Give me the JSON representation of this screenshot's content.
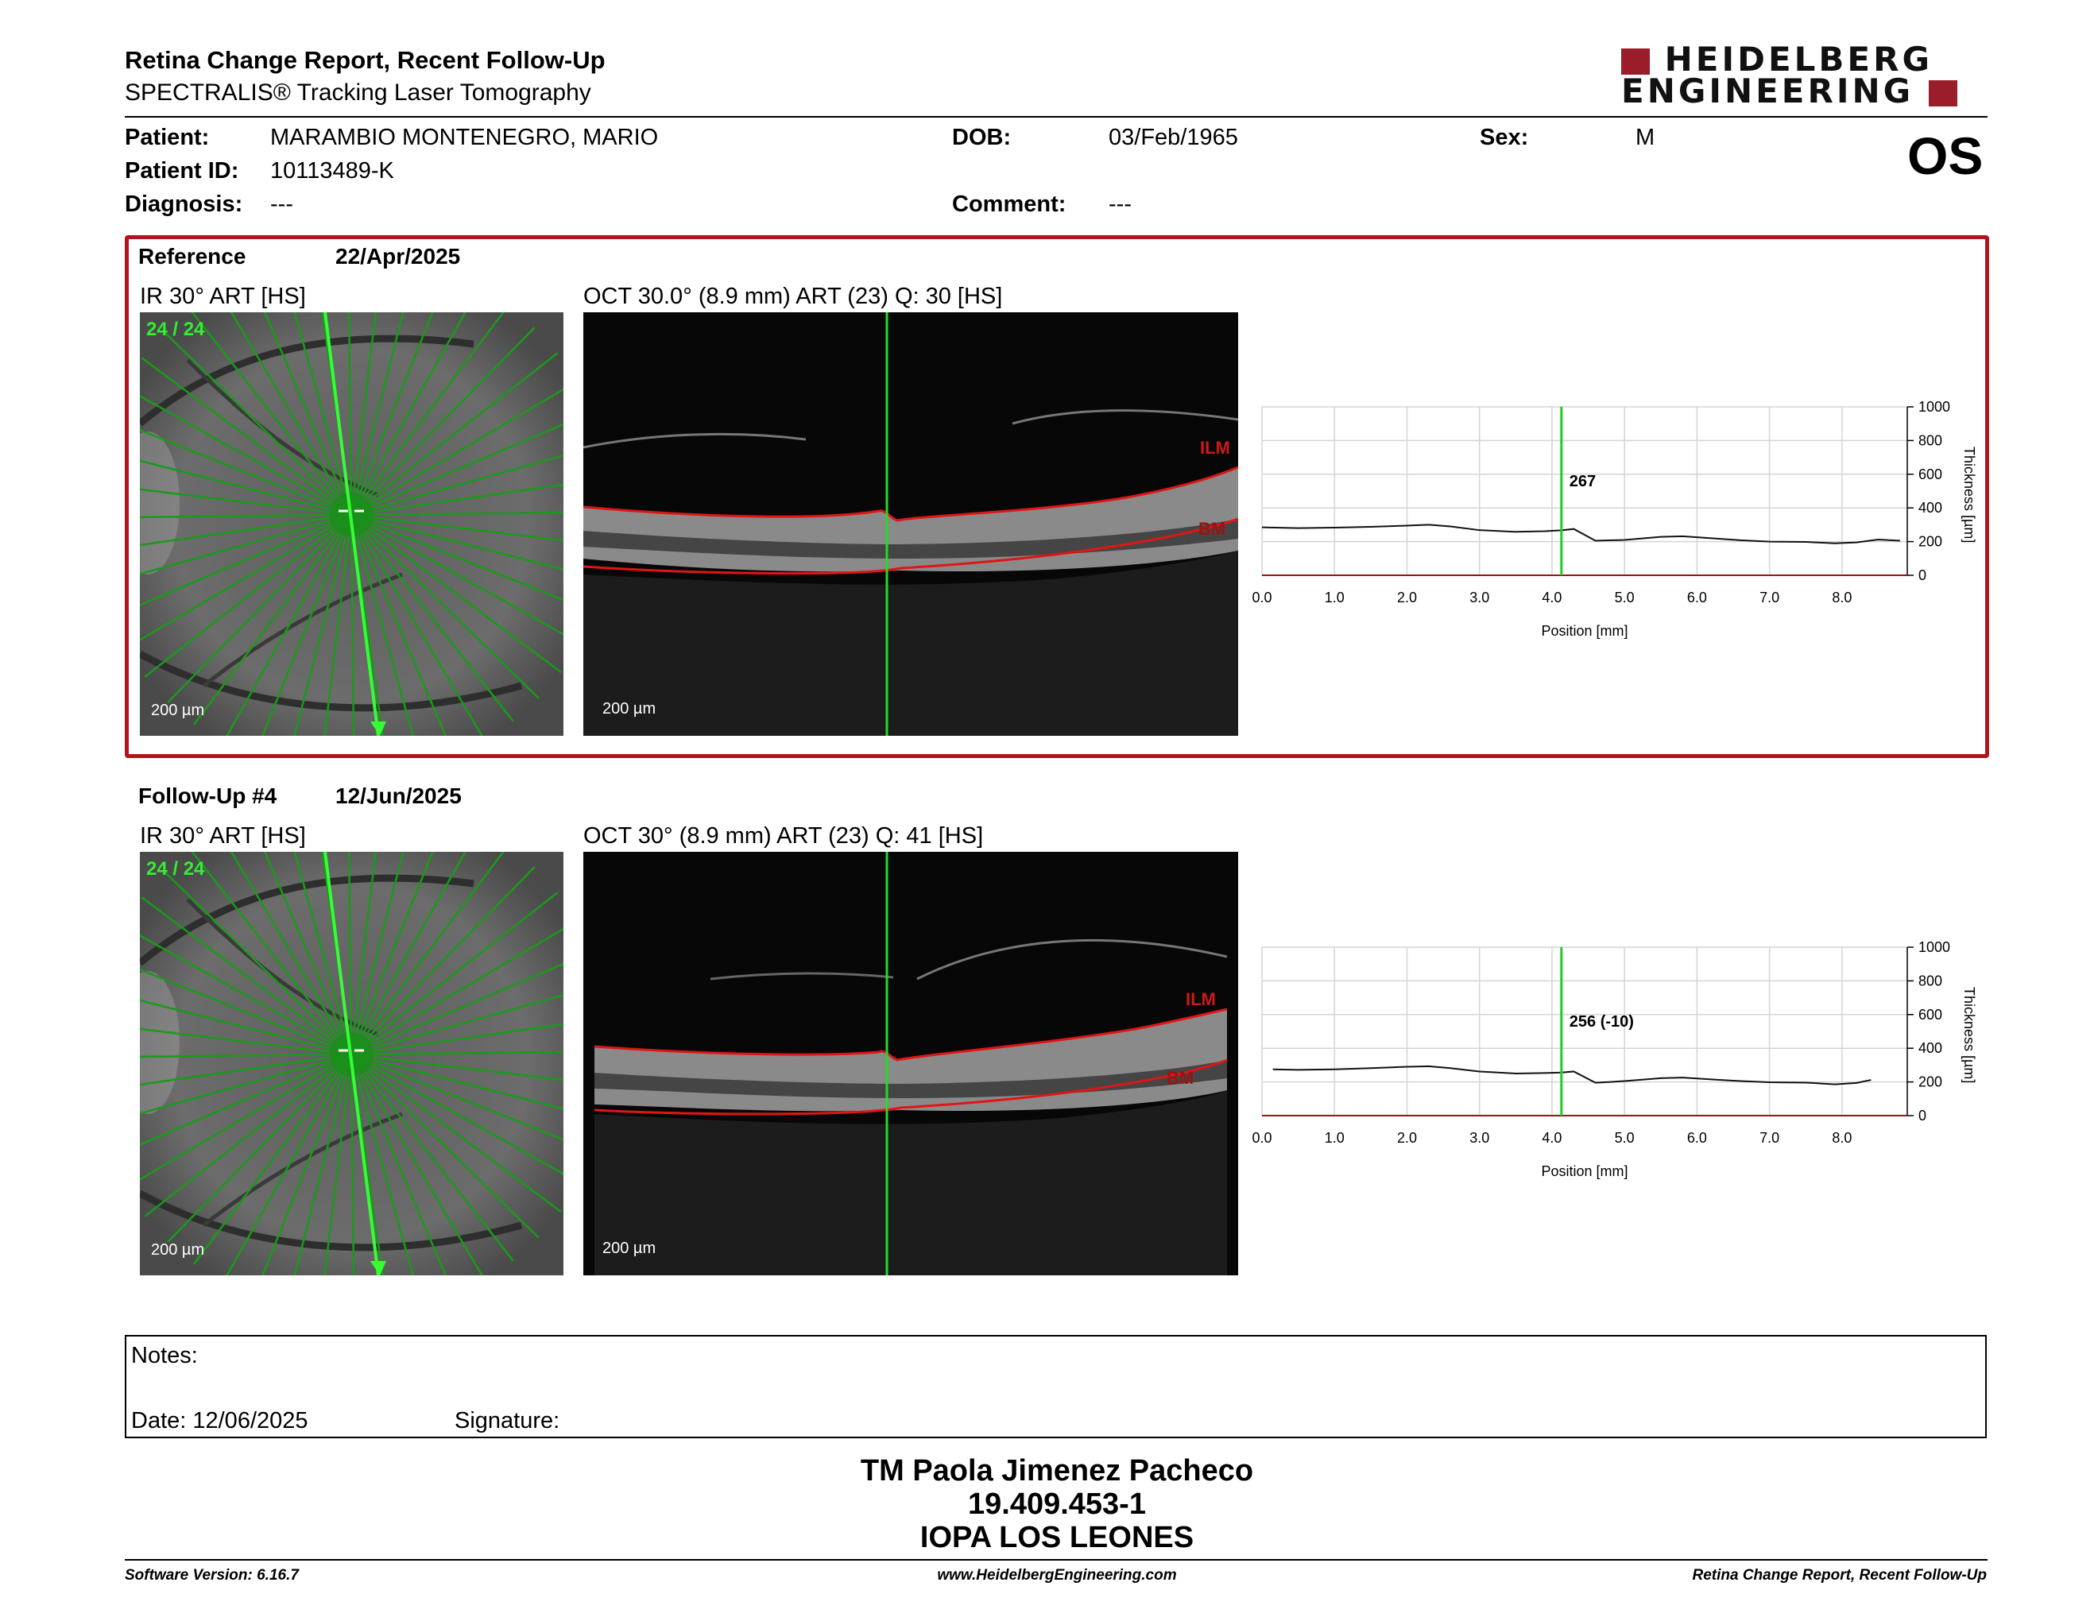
{
  "header": {
    "title": "Retina Change Report, Recent Follow-Up",
    "subtitle": "SPECTRALIS® Tracking Laser Tomography",
    "logo_line1": "HEIDELBERG",
    "logo_line2": "ENGINEERING"
  },
  "patient": {
    "patient_label": "Patient:",
    "patient_value": "MARAMBIO MONTENEGRO, MARIO",
    "dob_label": "DOB:",
    "dob_value": "03/Feb/1965",
    "sex_label": "Sex:",
    "sex_value": "M",
    "id_label": "Patient ID:",
    "id_value": "10113489-K",
    "diagnosis_label": "Diagnosis:",
    "diagnosis_value": "---",
    "comment_label": "Comment:",
    "comment_value": "---",
    "eye": "OS"
  },
  "reference": {
    "label": "Reference",
    "date": "22/Apr/2025",
    "ir_title": "IR 30° ART [HS]",
    "ir_counter": "24 / 24",
    "ir_scale": "200 µm",
    "oct_title": "OCT 30.0° (8.9 mm) ART (23) Q: 30 [HS]",
    "oct_scale": "200 µm",
    "ilm_label": "ILM",
    "bm_label": "BM"
  },
  "followup": {
    "label": "Follow-Up #4",
    "date": "12/Jun/2025",
    "ir_title": "IR 30° ART [HS]",
    "ir_counter": "24 / 24",
    "ir_scale": "200 µm",
    "oct_title": "OCT 30° (8.9 mm) ART (23) Q: 41 [HS]",
    "oct_scale": "200 µm",
    "ilm_label": "ILM",
    "bm_label": "BM"
  },
  "chart_data": [
    {
      "type": "line",
      "xlabel": "Position [mm]",
      "ylabel": "Thickness [µm]",
      "xlim": [
        0,
        8.9
      ],
      "ylim": [
        0,
        1000
      ],
      "x_ticks": [
        "0.0",
        "1.0",
        "2.0",
        "3.0",
        "4.0",
        "5.0",
        "6.0",
        "7.0",
        "8.0"
      ],
      "y_ticks": [
        "0",
        "200",
        "400",
        "600",
        "800",
        "1000"
      ],
      "marker_x": 4.13,
      "marker_label": "267",
      "grid": true,
      "series": [
        {
          "x": [
            0,
            0.5,
            1.0,
            1.5,
            2.0,
            2.3,
            2.6,
            3.0,
            3.5,
            3.9,
            4.13,
            4.3,
            4.6,
            5.0,
            5.5,
            5.8,
            6.2,
            6.6,
            7.0,
            7.5,
            7.9,
            8.2,
            8.5,
            8.8
          ],
          "y": [
            285,
            280,
            283,
            288,
            295,
            300,
            290,
            268,
            258,
            262,
            267,
            275,
            205,
            210,
            228,
            232,
            220,
            208,
            200,
            198,
            190,
            195,
            212,
            205
          ]
        }
      ]
    },
    {
      "type": "line",
      "xlabel": "Position [mm]",
      "ylabel": "Thickness [µm]",
      "xlim": [
        0,
        8.9
      ],
      "ylim": [
        0,
        1000
      ],
      "x_ticks": [
        "0.0",
        "1.0",
        "2.0",
        "3.0",
        "4.0",
        "5.0",
        "6.0",
        "7.0",
        "8.0"
      ],
      "y_ticks": [
        "0",
        "200",
        "400",
        "600",
        "800",
        "1000"
      ],
      "marker_x": 4.13,
      "marker_label": "256 (-10)",
      "grid": true,
      "series": [
        {
          "x": [
            0.15,
            0.5,
            1.0,
            1.5,
            2.0,
            2.3,
            2.6,
            3.0,
            3.5,
            3.9,
            4.13,
            4.3,
            4.6,
            5.0,
            5.5,
            5.8,
            6.2,
            6.6,
            7.0,
            7.5,
            7.9,
            8.2,
            8.4
          ],
          "y": [
            275,
            272,
            275,
            282,
            290,
            293,
            282,
            262,
            250,
            253,
            256,
            262,
            195,
            205,
            222,
            226,
            215,
            205,
            198,
            196,
            186,
            194,
            212
          ]
        }
      ]
    }
  ],
  "notes": {
    "notes_label": "Notes:",
    "date_label": "Date: 12/06/2025",
    "signature_label": "Signature:"
  },
  "signature": {
    "name": "TM Paola Jimenez Pacheco",
    "id": "19.409.453-1",
    "org": "IOPA LOS LEONES"
  },
  "footer": {
    "left": "Software Version: 6.16.7",
    "center": "www.HeidelbergEngineering.com",
    "right": "Retina Change Report, Recent Follow-Up"
  }
}
